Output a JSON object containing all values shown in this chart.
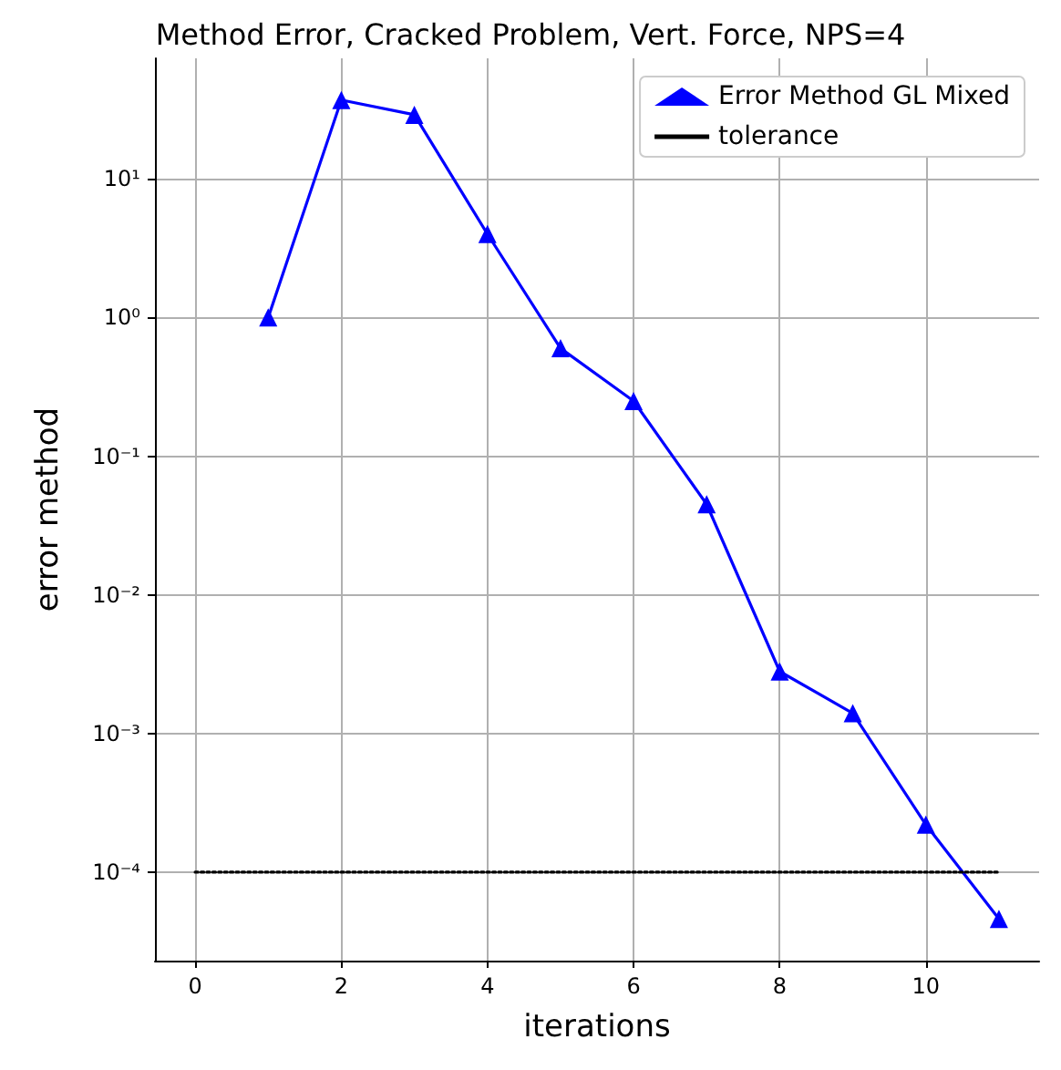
{
  "chart_data": {
    "type": "line",
    "title": "Method Error, Cracked Problem, Vert. Force, NPS=4",
    "xlabel": "iterations",
    "ylabel": "error method",
    "x": [
      1,
      2,
      3,
      4,
      5,
      6,
      7,
      8,
      9,
      10,
      11
    ],
    "series": [
      {
        "name": "Error Method GL Mixed",
        "color": "#0000ff",
        "marker": "triangle",
        "line_style": "solid",
        "values": [
          1.0,
          37,
          29,
          4.0,
          0.6,
          0.25,
          0.045,
          0.0028,
          0.0014,
          0.00022,
          4.6e-05
        ]
      },
      {
        "name": "tolerance",
        "color": "#000000",
        "marker": "none",
        "line_style": "dotted",
        "x": [
          0,
          11
        ],
        "values": [
          0.0001,
          0.0001
        ]
      }
    ],
    "log": "y",
    "xlim": [
      -0.55,
      11.55
    ],
    "ylim": [
      2.3e-05,
      74
    ],
    "xticks": [
      0,
      2,
      4,
      6,
      8,
      10
    ],
    "yticks": [
      {
        "value": 0.0001,
        "label": "10⁻⁴"
      },
      {
        "value": 0.001,
        "label": "10⁻³"
      },
      {
        "value": 0.01,
        "label": "10⁻²"
      },
      {
        "value": 0.1,
        "label": "10⁻¹"
      },
      {
        "value": 1,
        "label": "10⁰"
      },
      {
        "value": 10,
        "label": "10¹"
      }
    ],
    "grid": true,
    "legend": "top right"
  }
}
